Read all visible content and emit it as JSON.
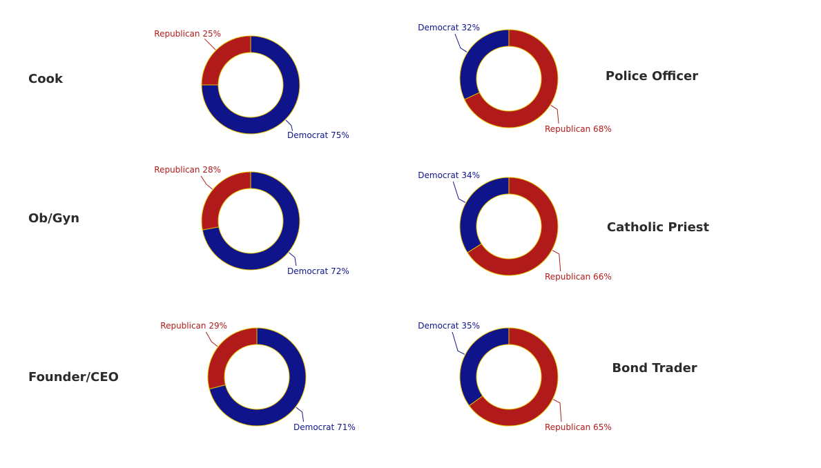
{
  "colors": {
    "democrat": "#0f148a",
    "republican": "#b01a1a",
    "border": "#e6c200"
  },
  "chart_data": [
    {
      "type": "pie",
      "variant": "donut",
      "title": "Cook",
      "slices": [
        {
          "label": "Republican",
          "value": 25,
          "text": "Republican 25%"
        },
        {
          "label": "Democrat",
          "value": 75,
          "text": "Democrat 75%"
        }
      ]
    },
    {
      "type": "pie",
      "variant": "donut",
      "title": "Police Officer",
      "slices": [
        {
          "label": "Democrat",
          "value": 32,
          "text": "Democrat 32%"
        },
        {
          "label": "Republican",
          "value": 68,
          "text": "Republican 68%"
        }
      ]
    },
    {
      "type": "pie",
      "variant": "donut",
      "title": "Ob/Gyn",
      "slices": [
        {
          "label": "Republican",
          "value": 28,
          "text": "Republican 28%"
        },
        {
          "label": "Democrat",
          "value": 72,
          "text": "Democrat 72%"
        }
      ]
    },
    {
      "type": "pie",
      "variant": "donut",
      "title": "Catholic Priest",
      "slices": [
        {
          "label": "Democrat",
          "value": 34,
          "text": "Democrat 34%"
        },
        {
          "label": "Republican",
          "value": 66,
          "text": "Republican 66%"
        }
      ]
    },
    {
      "type": "pie",
      "variant": "donut",
      "title": "Founder/CEO",
      "slices": [
        {
          "label": "Republican",
          "value": 29,
          "text": "Republican 29%"
        },
        {
          "label": "Democrat",
          "value": 71,
          "text": "Democrat 71%"
        }
      ]
    },
    {
      "type": "pie",
      "variant": "donut",
      "title": "Bond Trader",
      "slices": [
        {
          "label": "Democrat",
          "value": 35,
          "text": "Democrat 35%"
        },
        {
          "label": "Republican",
          "value": 65,
          "text": "Republican 65%"
        }
      ]
    }
  ]
}
